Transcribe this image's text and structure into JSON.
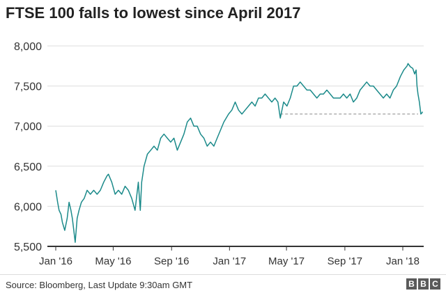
{
  "header": {
    "title": "FTSE 100 falls to lowest since April 2017"
  },
  "footer": {
    "source": "Source: Bloomberg, Last Update 9:30am GMT",
    "logo": [
      "B",
      "B",
      "C"
    ]
  },
  "colors": {
    "line": "#1b8a8a",
    "grid": "#dddddd",
    "axis": "#333333",
    "reference": "#888888"
  },
  "chart_data": {
    "type": "line",
    "title": "FTSE 100 falls to lowest since April 2017",
    "xlabel": "",
    "ylabel": "",
    "ylim": [
      5500,
      8000
    ],
    "xlim": [
      "2016-01-01",
      "2018-02-05"
    ],
    "y_ticks": [
      5500,
      6000,
      6500,
      7000,
      7500,
      8000
    ],
    "y_tick_labels": [
      "5,500",
      "6,000",
      "6,500",
      "7,000",
      "7,500",
      "8,000"
    ],
    "x_ticks": [
      "2016-01-01",
      "2016-05-01",
      "2016-09-01",
      "2017-01-01",
      "2017-05-01",
      "2017-09-01",
      "2018-01-01"
    ],
    "x_tick_labels": [
      "Jan '16",
      "May '16",
      "Sep '16",
      "Jan '17",
      "May '17",
      "Sep '17",
      "Jan '18"
    ],
    "grid": "horizontal",
    "reference_line": {
      "y": 7150,
      "x_start": "2017-04-18",
      "x_end": "2018-02-05",
      "style": "dashed"
    },
    "series": [
      {
        "values": [
          [
            "2016-01-01",
            6200
          ],
          [
            "2016-01-05",
            6050
          ],
          [
            "2016-01-08",
            5950
          ],
          [
            "2016-01-12",
            5900
          ],
          [
            "2016-01-15",
            5800
          ],
          [
            "2016-01-20",
            5700
          ],
          [
            "2016-01-25",
            5850
          ],
          [
            "2016-01-29",
            6050
          ],
          [
            "2016-02-02",
            5950
          ],
          [
            "2016-02-05",
            5850
          ],
          [
            "2016-02-08",
            5700
          ],
          [
            "2016-02-11",
            5550
          ],
          [
            "2016-02-15",
            5850
          ],
          [
            "2016-02-19",
            5950
          ],
          [
            "2016-02-24",
            6050
          ],
          [
            "2016-03-01",
            6100
          ],
          [
            "2016-03-07",
            6200
          ],
          [
            "2016-03-14",
            6150
          ],
          [
            "2016-03-21",
            6200
          ],
          [
            "2016-03-28",
            6150
          ],
          [
            "2016-04-04",
            6200
          ],
          [
            "2016-04-11",
            6300
          ],
          [
            "2016-04-18",
            6380
          ],
          [
            "2016-04-21",
            6400
          ],
          [
            "2016-04-28",
            6300
          ],
          [
            "2016-05-05",
            6150
          ],
          [
            "2016-05-12",
            6200
          ],
          [
            "2016-05-19",
            6150
          ],
          [
            "2016-05-26",
            6250
          ],
          [
            "2016-06-02",
            6200
          ],
          [
            "2016-06-09",
            6100
          ],
          [
            "2016-06-16",
            5950
          ],
          [
            "2016-06-23",
            6300
          ],
          [
            "2016-06-27",
            5950
          ],
          [
            "2016-06-30",
            6300
          ],
          [
            "2016-07-05",
            6500
          ],
          [
            "2016-07-12",
            6650
          ],
          [
            "2016-07-19",
            6700
          ],
          [
            "2016-07-26",
            6750
          ],
          [
            "2016-08-02",
            6700
          ],
          [
            "2016-08-09",
            6850
          ],
          [
            "2016-08-16",
            6900
          ],
          [
            "2016-08-23",
            6850
          ],
          [
            "2016-08-30",
            6800
          ],
          [
            "2016-09-06",
            6850
          ],
          [
            "2016-09-13",
            6700
          ],
          [
            "2016-09-20",
            6800
          ],
          [
            "2016-09-27",
            6900
          ],
          [
            "2016-10-04",
            7050
          ],
          [
            "2016-10-11",
            7100
          ],
          [
            "2016-10-18",
            7000
          ],
          [
            "2016-10-25",
            7000
          ],
          [
            "2016-11-01",
            6900
          ],
          [
            "2016-11-08",
            6850
          ],
          [
            "2016-11-15",
            6750
          ],
          [
            "2016-11-22",
            6800
          ],
          [
            "2016-11-29",
            6750
          ],
          [
            "2016-12-06",
            6850
          ],
          [
            "2016-12-13",
            6950
          ],
          [
            "2016-12-20",
            7050
          ],
          [
            "2016-12-30",
            7150
          ],
          [
            "2017-01-06",
            7200
          ],
          [
            "2017-01-13",
            7300
          ],
          [
            "2017-01-20",
            7200
          ],
          [
            "2017-01-27",
            7150
          ],
          [
            "2017-02-03",
            7200
          ],
          [
            "2017-02-10",
            7250
          ],
          [
            "2017-02-17",
            7300
          ],
          [
            "2017-02-24",
            7250
          ],
          [
            "2017-03-03",
            7350
          ],
          [
            "2017-03-10",
            7350
          ],
          [
            "2017-03-17",
            7400
          ],
          [
            "2017-03-24",
            7350
          ],
          [
            "2017-03-31",
            7300
          ],
          [
            "2017-04-07",
            7350
          ],
          [
            "2017-04-13",
            7300
          ],
          [
            "2017-04-18",
            7100
          ],
          [
            "2017-04-25",
            7300
          ],
          [
            "2017-05-02",
            7250
          ],
          [
            "2017-05-09",
            7350
          ],
          [
            "2017-05-16",
            7500
          ],
          [
            "2017-05-23",
            7500
          ],
          [
            "2017-05-30",
            7550
          ],
          [
            "2017-06-06",
            7500
          ],
          [
            "2017-06-13",
            7450
          ],
          [
            "2017-06-20",
            7450
          ],
          [
            "2017-06-27",
            7400
          ],
          [
            "2017-07-04",
            7350
          ],
          [
            "2017-07-11",
            7400
          ],
          [
            "2017-07-18",
            7400
          ],
          [
            "2017-07-25",
            7450
          ],
          [
            "2017-08-01",
            7400
          ],
          [
            "2017-08-08",
            7350
          ],
          [
            "2017-08-15",
            7350
          ],
          [
            "2017-08-22",
            7350
          ],
          [
            "2017-08-29",
            7400
          ],
          [
            "2017-09-05",
            7350
          ],
          [
            "2017-09-12",
            7400
          ],
          [
            "2017-09-19",
            7300
          ],
          [
            "2017-09-26",
            7350
          ],
          [
            "2017-10-03",
            7450
          ],
          [
            "2017-10-10",
            7500
          ],
          [
            "2017-10-17",
            7550
          ],
          [
            "2017-10-24",
            7500
          ],
          [
            "2017-10-31",
            7500
          ],
          [
            "2017-11-07",
            7450
          ],
          [
            "2017-11-14",
            7400
          ],
          [
            "2017-11-21",
            7350
          ],
          [
            "2017-11-28",
            7400
          ],
          [
            "2017-12-05",
            7350
          ],
          [
            "2017-12-12",
            7450
          ],
          [
            "2017-12-19",
            7500
          ],
          [
            "2017-12-27",
            7620
          ],
          [
            "2018-01-03",
            7700
          ],
          [
            "2018-01-10",
            7750
          ],
          [
            "2018-01-12",
            7780
          ],
          [
            "2018-01-17",
            7740
          ],
          [
            "2018-01-22",
            7720
          ],
          [
            "2018-01-26",
            7650
          ],
          [
            "2018-01-29",
            7700
          ],
          [
            "2018-01-31",
            7500
          ],
          [
            "2018-02-02",
            7400
          ],
          [
            "2018-02-05",
            7300
          ],
          [
            "2018-02-08",
            7150
          ],
          [
            "2018-02-12",
            7170
          ],
          [
            "2018-02-16",
            7180
          ]
        ]
      }
    ]
  }
}
